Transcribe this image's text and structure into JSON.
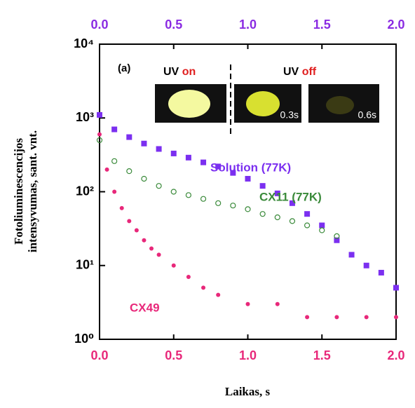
{
  "chart_data": {
    "type": "scatter",
    "xlabel": "Laikas, s",
    "ylabel": [
      "Fotoliuminescencijos",
      "intensyvumas, sant. vnt."
    ],
    "xlim": [
      0,
      2
    ],
    "ylim": [
      1,
      10000
    ],
    "log_y": true,
    "xticks": [
      {
        "value": 0,
        "label": "0.0"
      },
      {
        "value": 0.5,
        "label": "0.5"
      },
      {
        "value": 1,
        "label": "1.0"
      },
      {
        "value": 1.5,
        "label": "1.5"
      },
      {
        "value": 2,
        "label": "2.0"
      }
    ],
    "xtick_color": "#e8287a",
    "x2lim": [
      0,
      2
    ],
    "x2ticks": [
      {
        "value": 0,
        "label": "0.0"
      },
      {
        "value": 0.5,
        "label": "0.5"
      },
      {
        "value": 1,
        "label": "1.0"
      },
      {
        "value": 1.5,
        "label": "1.5"
      },
      {
        "value": 2,
        "label": "2.0"
      }
    ],
    "x2tick_color": "#8a2be2",
    "yticks": [
      {
        "value": 1,
        "label": "10⁰"
      },
      {
        "value": 10,
        "label": "10¹"
      },
      {
        "value": 100,
        "label": "10²"
      },
      {
        "value": 1000,
        "label": "10³"
      },
      {
        "value": 10000,
        "label": "10⁴"
      }
    ],
    "series": [
      {
        "name": "Solution (77K)",
        "color": "#7b2ff0",
        "marker": "square",
        "x": [
          0,
          0.1,
          0.2,
          0.3,
          0.4,
          0.5,
          0.6,
          0.7,
          0.8,
          0.9,
          1.0,
          1.1,
          1.2,
          1.3,
          1.4,
          1.5,
          1.6,
          1.7,
          1.8,
          1.9,
          2.0
        ],
        "values": [
          1100,
          700,
          550,
          450,
          380,
          330,
          290,
          250,
          220,
          180,
          150,
          120,
          95,
          70,
          50,
          35,
          22,
          14,
          10,
          8,
          5
        ]
      },
      {
        "name": "CX11 (77K)",
        "color": "#3a8a3a",
        "marker": "circle",
        "x": [
          0,
          0.1,
          0.2,
          0.3,
          0.4,
          0.5,
          0.6,
          0.7,
          0.8,
          0.9,
          1.0,
          1.1,
          1.2,
          1.3,
          1.4,
          1.5,
          1.6
        ],
        "values": [
          500,
          260,
          190,
          150,
          120,
          100,
          90,
          80,
          70,
          65,
          58,
          50,
          45,
          40,
          35,
          30,
          25
        ]
      },
      {
        "name": "CX49",
        "color": "#e8287a",
        "marker": "dot",
        "x": [
          0,
          0.05,
          0.1,
          0.15,
          0.2,
          0.25,
          0.3,
          0.35,
          0.4,
          0.5,
          0.6,
          0.7,
          0.8,
          1.0,
          1.2,
          1.4,
          1.6,
          1.8,
          2.0
        ],
        "values": [
          600,
          200,
          100,
          60,
          40,
          30,
          22,
          17,
          14,
          10,
          7,
          5,
          4,
          3,
          3,
          2,
          2,
          2,
          2
        ]
      }
    ],
    "inset": {
      "label": "(a)",
      "left": [
        "UV",
        "on"
      ],
      "right": [
        "UV",
        "off"
      ],
      "times": [
        "0.3s",
        "0.6s"
      ]
    }
  }
}
